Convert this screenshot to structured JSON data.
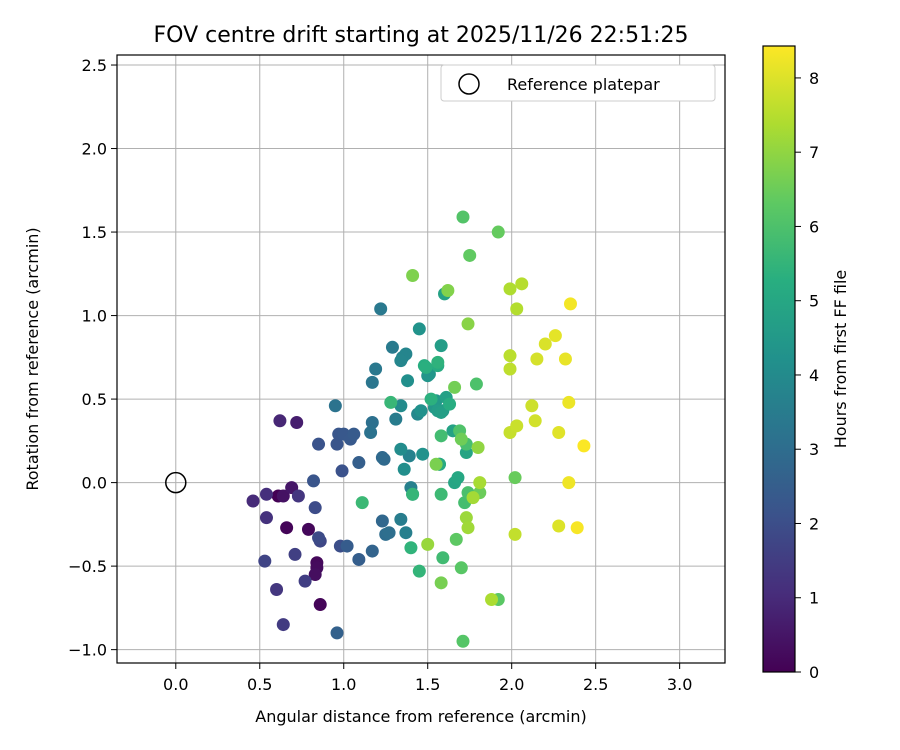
{
  "chart_data": {
    "type": "scatter",
    "title": "FOV centre drift starting at 2025/11/26 22:51:25",
    "xlabel": "Angular distance from reference (arcmin)",
    "ylabel": "Rotation from reference (arcmin)",
    "xlim": [
      -0.35,
      3.27
    ],
    "ylim": [
      -1.08,
      2.56
    ],
    "xticks": [
      0.0,
      0.5,
      1.0,
      1.5,
      2.0,
      2.5,
      3.0
    ],
    "xtick_labels": [
      "0.0",
      "0.5",
      "1.0",
      "1.5",
      "2.0",
      "2.5",
      "3.0"
    ],
    "yticks": [
      -1.0,
      -0.5,
      0.0,
      0.5,
      1.0,
      1.5,
      2.0,
      2.5
    ],
    "ytick_labels": [
      "−1.0",
      "−0.5",
      "0.0",
      "0.5",
      "1.0",
      "1.5",
      "2.0",
      "2.5"
    ],
    "grid": true,
    "legend": {
      "position": "top-right",
      "entries": [
        "Reference platepar"
      ]
    },
    "reference_point": {
      "x": 0.0,
      "y": 0.0,
      "label": "Reference platepar"
    },
    "colorbar": {
      "label": "Hours from first FF file",
      "range": [
        0,
        8.43
      ],
      "ticks": [
        0,
        1,
        2,
        3,
        4,
        5,
        6,
        7,
        8
      ],
      "tick_labels": [
        "0",
        "1",
        "2",
        "3",
        "4",
        "5",
        "6",
        "7",
        "8"
      ],
      "colormap": "viridis"
    },
    "points": [
      [
        0.61,
        -0.08,
        0.0
      ],
      [
        0.66,
        -0.27,
        0.1
      ],
      [
        0.79,
        -0.28,
        0.15
      ],
      [
        0.84,
        -0.48,
        0.2
      ],
      [
        0.84,
        -0.51,
        0.25
      ],
      [
        0.83,
        -0.55,
        0.3
      ],
      [
        0.86,
        -0.73,
        0.1
      ],
      [
        0.64,
        -0.08,
        0.4
      ],
      [
        0.69,
        -0.03,
        0.5
      ],
      [
        0.72,
        0.36,
        0.7
      ],
      [
        0.62,
        0.37,
        0.9
      ],
      [
        0.46,
        -0.11,
        1.0
      ],
      [
        0.54,
        -0.07,
        1.1
      ],
      [
        0.54,
        -0.21,
        1.2
      ],
      [
        0.73,
        -0.08,
        1.3
      ],
      [
        0.6,
        -0.64,
        1.35
      ],
      [
        0.64,
        -0.85,
        1.45
      ],
      [
        0.77,
        -0.59,
        1.55
      ],
      [
        0.71,
        -0.43,
        1.6
      ],
      [
        0.53,
        -0.47,
        1.7
      ],
      [
        0.86,
        -0.35,
        1.8
      ],
      [
        0.85,
        -0.33,
        1.9
      ],
      [
        0.83,
        -0.15,
        1.95
      ],
      [
        0.98,
        -0.38,
        2.0
      ],
      [
        0.99,
        0.07,
        2.1
      ],
      [
        0.85,
        0.23,
        2.15
      ],
      [
        0.96,
        0.23,
        2.2
      ],
      [
        0.97,
        0.29,
        2.25
      ],
      [
        1.0,
        0.29,
        2.3
      ],
      [
        1.04,
        0.26,
        2.35
      ],
      [
        1.06,
        0.29,
        2.4
      ],
      [
        1.02,
        -0.38,
        2.45
      ],
      [
        1.09,
        -0.46,
        2.5
      ],
      [
        1.09,
        0.12,
        2.55
      ],
      [
        0.96,
        -0.9,
        2.6
      ],
      [
        0.82,
        0.01,
        2.2
      ],
      [
        1.17,
        -0.41,
        2.7
      ],
      [
        1.23,
        -0.23,
        2.8
      ],
      [
        1.23,
        0.15,
        2.85
      ],
      [
        1.24,
        0.14,
        2.9
      ],
      [
        1.25,
        -0.31,
        3.0
      ],
      [
        1.27,
        -0.3,
        3.05
      ],
      [
        1.17,
        0.36,
        3.1
      ],
      [
        1.16,
        0.3,
        3.15
      ],
      [
        0.95,
        0.46,
        3.2
      ],
      [
        1.17,
        0.6,
        3.3
      ],
      [
        1.19,
        0.68,
        3.35
      ],
      [
        1.22,
        1.04,
        3.4
      ],
      [
        1.29,
        0.81,
        3.45
      ],
      [
        1.31,
        0.38,
        3.5
      ],
      [
        1.34,
        -0.22,
        3.55
      ],
      [
        1.37,
        -0.3,
        3.6
      ],
      [
        1.4,
        -0.03,
        3.65
      ],
      [
        1.39,
        0.16,
        3.7
      ],
      [
        1.35,
        0.75,
        3.75
      ],
      [
        1.37,
        0.77,
        3.8
      ],
      [
        1.34,
        0.73,
        3.85
      ],
      [
        1.44,
        0.41,
        3.9
      ],
      [
        1.41,
        -0.07,
        3.95
      ],
      [
        1.34,
        0.46,
        4.0
      ],
      [
        1.34,
        0.2,
        4.05
      ],
      [
        1.36,
        0.08,
        4.1
      ],
      [
        1.38,
        0.61,
        4.15
      ],
      [
        1.46,
        0.43,
        4.2
      ],
      [
        1.47,
        0.17,
        4.25
      ],
      [
        1.45,
        0.92,
        4.3
      ],
      [
        1.5,
        0.64,
        4.35
      ],
      [
        1.51,
        0.65,
        4.4
      ],
      [
        1.54,
        0.45,
        4.45
      ],
      [
        1.55,
        0.49,
        4.5
      ],
      [
        1.59,
        0.43,
        4.55
      ],
      [
        1.56,
        0.43,
        4.6
      ],
      [
        1.58,
        0.82,
        4.65
      ],
      [
        1.58,
        0.42,
        4.7
      ],
      [
        1.61,
        0.51,
        4.75
      ],
      [
        1.6,
        1.13,
        4.8
      ],
      [
        1.65,
        0.31,
        4.85
      ],
      [
        1.73,
        0.18,
        4.9
      ],
      [
        1.66,
        0.0,
        4.95
      ],
      [
        1.68,
        0.03,
        5.0
      ],
      [
        1.57,
        0.11,
        5.05
      ],
      [
        1.57,
        0.11,
        5.1
      ],
      [
        1.56,
        0.7,
        5.15
      ],
      [
        1.63,
        0.47,
        5.2
      ],
      [
        1.48,
        0.7,
        5.25
      ],
      [
        1.49,
        0.69,
        5.3
      ],
      [
        1.52,
        0.5,
        5.35
      ],
      [
        1.56,
        0.72,
        5.4
      ],
      [
        1.4,
        -0.39,
        5.45
      ],
      [
        1.45,
        -0.53,
        5.5
      ],
      [
        1.41,
        -0.07,
        5.55
      ],
      [
        1.28,
        0.48,
        5.6
      ],
      [
        1.11,
        -0.12,
        5.65
      ],
      [
        1.58,
        -0.07,
        5.7
      ],
      [
        1.59,
        -0.45,
        5.75
      ],
      [
        1.58,
        0.28,
        5.8
      ],
      [
        1.72,
        -0.12,
        5.85
      ],
      [
        1.73,
        0.23,
        5.9
      ],
      [
        1.74,
        -0.06,
        5.95
      ],
      [
        1.79,
        0.59,
        6.0
      ],
      [
        1.69,
        0.31,
        6.05
      ],
      [
        1.71,
        1.59,
        6.1
      ],
      [
        1.71,
        -0.95,
        6.15
      ],
      [
        1.7,
        -0.51,
        6.2
      ],
      [
        1.92,
        -0.7,
        6.25
      ],
      [
        1.67,
        -0.34,
        6.3
      ],
      [
        1.75,
        1.36,
        6.35
      ],
      [
        1.92,
        1.5,
        6.4
      ],
      [
        2.02,
        0.03,
        6.45
      ],
      [
        1.81,
        -0.06,
        6.5
      ],
      [
        1.7,
        0.26,
        6.55
      ],
      [
        1.66,
        0.57,
        6.6
      ],
      [
        1.58,
        -0.6,
        6.65
      ],
      [
        1.55,
        0.11,
        6.7
      ],
      [
        1.41,
        1.24,
        6.75
      ],
      [
        1.62,
        1.15,
        6.8
      ],
      [
        1.74,
        0.95,
        6.9
      ],
      [
        1.8,
        0.21,
        7.0
      ],
      [
        1.5,
        -0.37,
        7.1
      ],
      [
        1.73,
        -0.21,
        7.15
      ],
      [
        1.74,
        -0.27,
        7.2
      ],
      [
        1.77,
        -0.09,
        7.25
      ],
      [
        1.81,
        0.0,
        7.3
      ],
      [
        1.88,
        -0.7,
        7.35
      ],
      [
        1.99,
        1.16,
        7.4
      ],
      [
        2.03,
        1.04,
        7.45
      ],
      [
        2.06,
        1.19,
        7.5
      ],
      [
        1.99,
        0.76,
        7.55
      ],
      [
        1.99,
        0.68,
        7.6
      ],
      [
        2.02,
        -0.31,
        7.65
      ],
      [
        1.99,
        0.3,
        7.7
      ],
      [
        2.03,
        0.34,
        7.75
      ],
      [
        2.12,
        0.46,
        7.8
      ],
      [
        2.14,
        0.37,
        7.85
      ],
      [
        2.15,
        0.74,
        7.9
      ],
      [
        2.2,
        0.83,
        7.95
      ],
      [
        2.28,
        -0.26,
        8.0
      ],
      [
        2.28,
        0.3,
        8.05
      ],
      [
        2.26,
        0.88,
        8.1
      ],
      [
        2.32,
        0.74,
        8.15
      ],
      [
        2.34,
        0.48,
        8.2
      ],
      [
        2.34,
        0.0,
        8.25
      ],
      [
        2.35,
        1.07,
        8.3
      ],
      [
        2.39,
        -0.27,
        8.35
      ],
      [
        2.43,
        0.22,
        8.4
      ]
    ]
  }
}
